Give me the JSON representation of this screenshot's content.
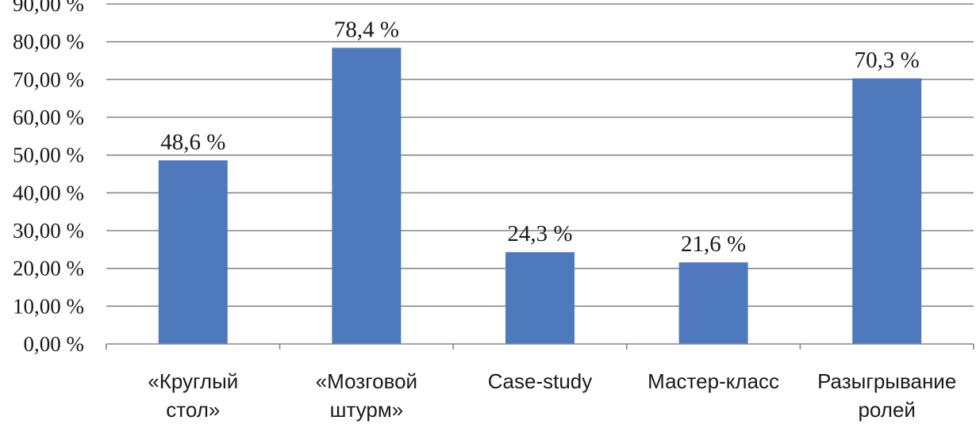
{
  "chart_data": {
    "type": "bar",
    "title": "",
    "xlabel": "",
    "ylabel": "",
    "ylim": [
      0,
      90
    ],
    "grid": true,
    "bar_color": "#4f79bd",
    "y_ticks": [
      {
        "value": 0,
        "label": "0,00 %"
      },
      {
        "value": 10,
        "label": "10,00 %"
      },
      {
        "value": 20,
        "label": "20,00 %"
      },
      {
        "value": 30,
        "label": "30,00 %"
      },
      {
        "value": 40,
        "label": "40,00 %"
      },
      {
        "value": 50,
        "label": "50,00 %"
      },
      {
        "value": 60,
        "label": "60,00 %"
      },
      {
        "value": 70,
        "label": "70,00 %"
      },
      {
        "value": 80,
        "label": "80,00 %"
      },
      {
        "value": 90,
        "label": "90,00 %"
      }
    ],
    "categories": [
      {
        "name": "«Круглый стол»",
        "lines": [
          "«Круглый",
          "стол»"
        ]
      },
      {
        "name": "«Мозговой штурм»",
        "lines": [
          "«Мозговой",
          "штурм»"
        ]
      },
      {
        "name": "Case-study",
        "lines": [
          "Case-study"
        ]
      },
      {
        "name": "Мастер-класс",
        "lines": [
          "Мастер-класс"
        ]
      },
      {
        "name": "Разыгрывание ролей",
        "lines": [
          "Разыгрывание",
          "ролей"
        ]
      }
    ],
    "values": [
      48.6,
      78.4,
      24.3,
      21.6,
      70.3
    ],
    "data_labels": [
      "48,6 %",
      "78,4 %",
      "24,3 %",
      "21,6 %",
      "70,3 %"
    ]
  }
}
